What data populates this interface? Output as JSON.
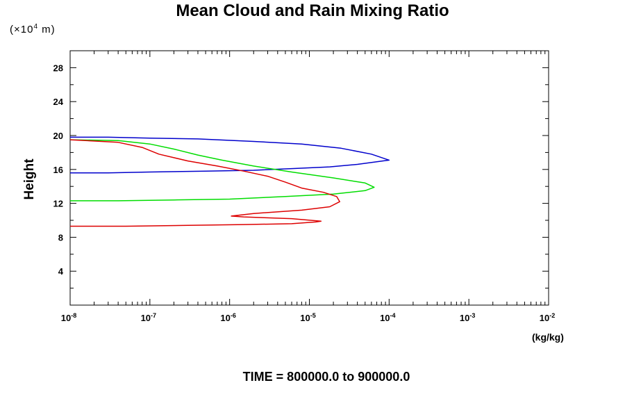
{
  "chart_data": {
    "type": "line",
    "title": "Mean Cloud and Rain Mixing Ratio",
    "y_scale_note": {
      "prefix": "(×10",
      "exp": "4",
      "suffix": " m)"
    },
    "ylabel": "Height",
    "xunit": "(kg/kg)",
    "footer": "TIME = 800000.0 to 900000.0",
    "xscale": "log",
    "xlim": [
      1e-08,
      0.01
    ],
    "ylim": [
      0,
      30
    ],
    "grid": false,
    "x_ticks": [
      {
        "base": "10",
        "exp": "-8",
        "value": 1e-08
      },
      {
        "base": "10",
        "exp": "-7",
        "value": 1e-07
      },
      {
        "base": "10",
        "exp": "-6",
        "value": 1e-06
      },
      {
        "base": "10",
        "exp": "-5",
        "value": 1e-05
      },
      {
        "base": "10",
        "exp": "-4",
        "value": 0.0001
      },
      {
        "base": "10",
        "exp": "-3",
        "value": 0.001
      },
      {
        "base": "10",
        "exp": "-2",
        "value": 0.01
      }
    ],
    "y_ticks": [
      "4",
      "8",
      "12",
      "16",
      "20",
      "24",
      "28"
    ],
    "series": [
      {
        "color": "#0000cc",
        "points": [
          [
            1e-08,
            15.6
          ],
          [
            3e-08,
            15.6
          ],
          [
            1e-07,
            15.7
          ],
          [
            5e-07,
            15.8
          ],
          [
            2e-06,
            15.9
          ],
          [
            6e-06,
            16.1
          ],
          [
            1.8e-05,
            16.3
          ],
          [
            4e-05,
            16.6
          ],
          [
            7e-05,
            16.9
          ],
          [
            0.0001,
            17.1
          ],
          [
            6e-05,
            17.8
          ],
          [
            2.5e-05,
            18.5
          ],
          [
            8e-06,
            19.0
          ],
          [
            2e-06,
            19.3
          ],
          [
            4e-07,
            19.6
          ],
          [
            1e-07,
            19.7
          ],
          [
            3e-08,
            19.8
          ],
          [
            1e-08,
            19.8
          ]
        ]
      },
      {
        "color": "#00dd00",
        "points": [
          [
            1e-08,
            12.3
          ],
          [
            4e-08,
            12.3
          ],
          [
            2e-07,
            12.4
          ],
          [
            1e-06,
            12.5
          ],
          [
            5e-06,
            12.8
          ],
          [
            2e-05,
            13.1
          ],
          [
            5e-05,
            13.5
          ],
          [
            6.5e-05,
            13.9
          ],
          [
            5e-05,
            14.4
          ],
          [
            2e-05,
            15.0
          ],
          [
            6e-06,
            15.7
          ],
          [
            2e-06,
            16.4
          ],
          [
            8e-07,
            17.1
          ],
          [
            4e-07,
            17.7
          ],
          [
            2e-07,
            18.4
          ],
          [
            1e-07,
            19.0
          ],
          [
            4e-08,
            19.4
          ],
          [
            1e-08,
            19.5
          ]
        ]
      },
      {
        "color": "#dd0000",
        "points": [
          [
            1e-08,
            9.3
          ],
          [
            5e-08,
            9.3
          ],
          [
            3e-07,
            9.4
          ],
          [
            1.5e-06,
            9.5
          ],
          [
            6e-06,
            9.6
          ],
          [
            1.2e-05,
            9.8
          ],
          [
            1.4e-05,
            9.9
          ],
          [
            6e-06,
            10.2
          ],
          [
            1.5e-06,
            10.4
          ],
          [
            1.05e-06,
            10.5
          ],
          [
            2e-06,
            10.8
          ],
          [
            8e-06,
            11.2
          ],
          [
            1.8e-05,
            11.6
          ],
          [
            2.4e-05,
            12.2
          ],
          [
            2.2e-05,
            12.8
          ],
          [
            1.5e-05,
            13.3
          ],
          [
            8e-06,
            13.8
          ],
          [
            5e-06,
            14.5
          ],
          [
            3e-06,
            15.2
          ],
          [
            1.5e-06,
            15.8
          ],
          [
            7e-07,
            16.4
          ],
          [
            3e-07,
            17.0
          ],
          [
            1.3e-07,
            17.8
          ],
          [
            8e-08,
            18.6
          ],
          [
            4e-08,
            19.2
          ],
          [
            1e-08,
            19.5
          ]
        ]
      }
    ]
  }
}
